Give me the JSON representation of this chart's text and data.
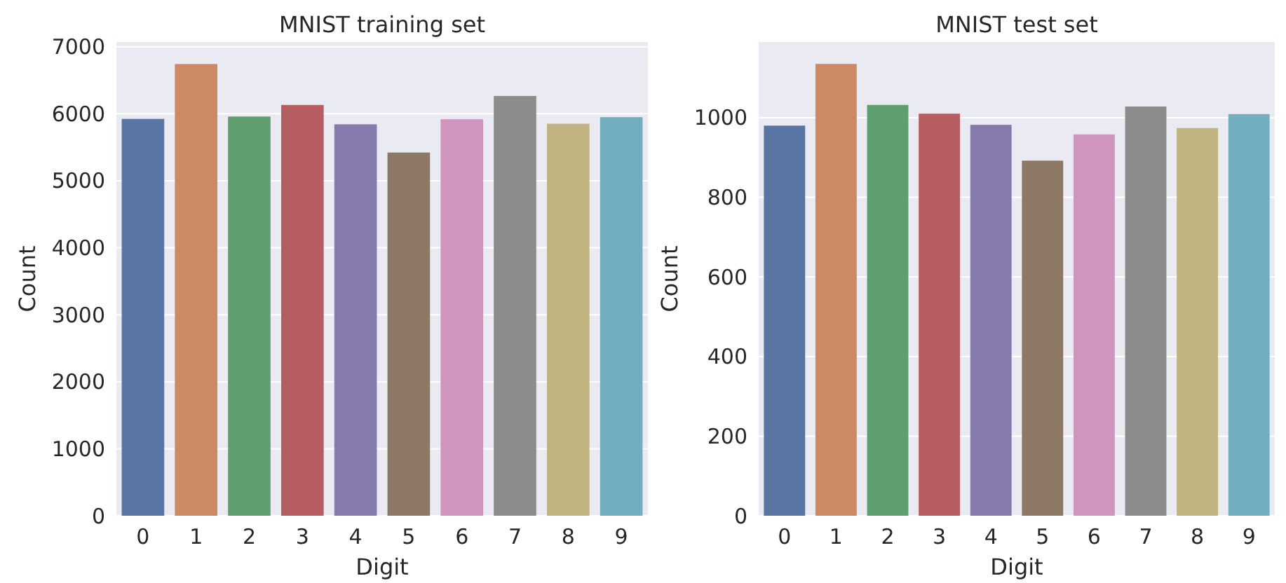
{
  "chart_data": [
    {
      "type": "bar",
      "title": "MNIST training set",
      "xlabel": "Digit",
      "ylabel": "Count",
      "categories": [
        "0",
        "1",
        "2",
        "3",
        "4",
        "5",
        "6",
        "7",
        "8",
        "9"
      ],
      "values": [
        5923,
        6742,
        5958,
        6131,
        5842,
        5421,
        5918,
        6265,
        5851,
        5949
      ],
      "colors": [
        "#5975a4",
        "#cc8963",
        "#5f9e6e",
        "#b55d60",
        "#857aab",
        "#8d7866",
        "#d095bf",
        "#8c8c8c",
        "#c1b37f",
        "#71aec0"
      ],
      "ylim": [
        0,
        7070
      ],
      "yticks": [
        0,
        1000,
        2000,
        3000,
        4000,
        5000,
        6000,
        7000
      ],
      "grid": "y"
    },
    {
      "type": "bar",
      "title": "MNIST test set",
      "xlabel": "Digit",
      "ylabel": "Count",
      "categories": [
        "0",
        "1",
        "2",
        "3",
        "4",
        "5",
        "6",
        "7",
        "8",
        "9"
      ],
      "values": [
        980,
        1135,
        1032,
        1010,
        982,
        892,
        958,
        1028,
        974,
        1009
      ],
      "colors": [
        "#5975a4",
        "#cc8963",
        "#5f9e6e",
        "#b55d60",
        "#857aab",
        "#8d7866",
        "#d095bf",
        "#8c8c8c",
        "#c1b37f",
        "#71aec0"
      ],
      "ylim": [
        0,
        1190
      ],
      "yticks": [
        0,
        200,
        400,
        600,
        800,
        1000
      ],
      "grid": "y"
    }
  ]
}
